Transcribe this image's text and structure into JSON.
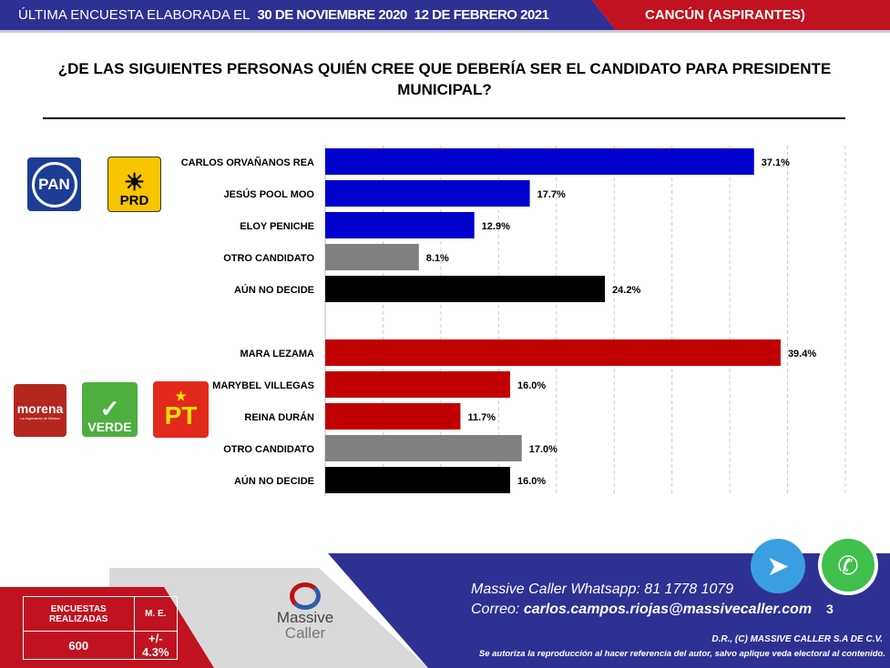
{
  "header": {
    "survey_label": "ÚLTIMA ENCUESTA ELABORADA EL",
    "date_overlay_a": "30 DE NOVIEMBRE 2020",
    "date_overlay_b": "12 DE FEBRERO 2021",
    "region": "CANCÚN (ASPIRANTES)",
    "colors": {
      "blue": "#2e3192",
      "red": "#c1121f"
    }
  },
  "title": "¿DE LAS SIGUIENTES PERSONAS QUIÉN CREE QUE DEBERÍA SER EL CANDIDATO PARA PRESIDENTE MUNICIPAL?",
  "logos": {
    "pan": "PAN",
    "prd": "PRD",
    "morena": "morena",
    "morena_sub": "La esperanza de México",
    "verde": "VERDE",
    "pt": "PT"
  },
  "chart_data": {
    "type": "bar",
    "orientation": "horizontal",
    "xlim": [
      0,
      45
    ],
    "grid": true,
    "value_suffix": "%",
    "groups": [
      {
        "parties": [
          "PAN",
          "PRD"
        ],
        "categories": [
          "CARLOS ORVAÑANOS REA",
          "JESÚS POOL MOO",
          "ELOY PENICHE",
          "OTRO CANDIDATO",
          "AÚN NO DECIDE"
        ],
        "values": [
          37.1,
          17.7,
          12.9,
          8.1,
          24.2
        ],
        "labels": [
          "37.1%",
          "17.7%",
          "12.9%",
          "8.1%",
          "24.2%"
        ],
        "colors": [
          "#0000cc",
          "#0000cc",
          "#0000cc",
          "#808080",
          "#000000"
        ]
      },
      {
        "parties": [
          "morena",
          "VERDE",
          "PT"
        ],
        "categories": [
          "MARA LEZAMA",
          "MARYBEL VILLEGAS",
          "REINA DURÁN",
          "OTRO CANDIDATO",
          "AÚN NO DECIDE"
        ],
        "values": [
          39.4,
          16.0,
          11.7,
          17.0,
          16.0
        ],
        "labels": [
          "39.4%",
          "16.0%",
          "11.7%",
          "17.0%",
          "16.0%"
        ],
        "colors": [
          "#c00000",
          "#c00000",
          "#c00000",
          "#808080",
          "#000000"
        ]
      }
    ]
  },
  "footer": {
    "table": {
      "h1": "ENCUESTAS REALIZADAS",
      "h2": "M. E.",
      "v1": "600",
      "v2": "+/- 4.3%"
    },
    "brand_1": "Massive",
    "brand_2": "Caller",
    "whatsapp_label": "Massive Caller Whatsapp:",
    "whatsapp_number": "81 1778 1079",
    "email_label": "Correo:",
    "email": "carlos.campos.riojas@massivecaller.com",
    "page_number": "3",
    "copyright": "D.R., (C) MASSIVE CALLER S.A DE C.V.",
    "disclaimer": "Se autoriza la reproducción al hacer referencia del autor, salvo aplique veda electoral al contenido."
  }
}
